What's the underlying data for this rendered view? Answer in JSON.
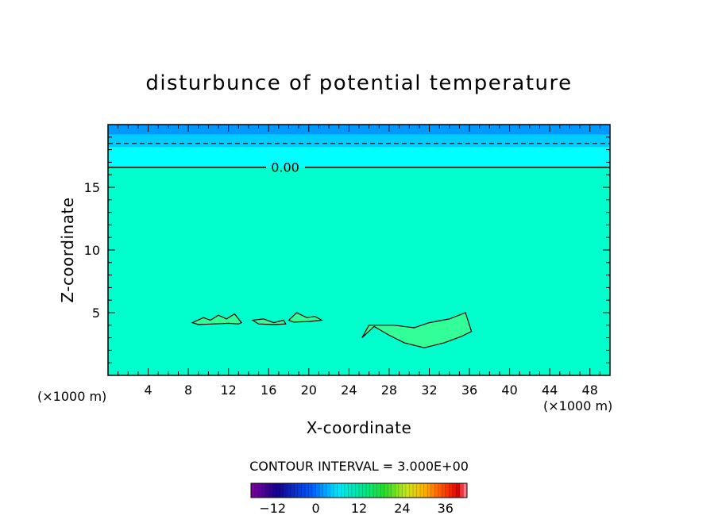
{
  "chart_data": {
    "type": "heatmap",
    "title": "disturbunce of potential temperature",
    "xlabel": "X-coordinate",
    "ylabel": "Z-coordinate",
    "x_unit_left": "(×1000 m)",
    "x_unit_right": "(×1000 m)",
    "xlim": [
      0,
      50
    ],
    "ylim": [
      0,
      20
    ],
    "x_ticks": [
      "4",
      "8",
      "12",
      "16",
      "20",
      "24",
      "28",
      "32",
      "36",
      "40",
      "44",
      "48"
    ],
    "x_tick_values": [
      4,
      8,
      12,
      16,
      20,
      24,
      28,
      32,
      36,
      40,
      44,
      48
    ],
    "y_ticks": [
      "5",
      "10",
      "15"
    ],
    "y_tick_values": [
      5,
      10,
      15
    ],
    "contour_interval_text": "CONTOUR INTERVAL = 3.000E+00",
    "contour_label": "0.00",
    "zero_contour_z": 16.6,
    "dashed_contour_z": 18.5,
    "bands": [
      {
        "z_from": 0,
        "z_to": 16.6,
        "color": "#00ffcc"
      },
      {
        "z_from": 16.6,
        "z_to": 18.2,
        "color": "#00ffff"
      },
      {
        "z_from": 18.2,
        "z_to": 19.2,
        "color": "#00ccff"
      },
      {
        "z_from": 19.2,
        "z_to": 20,
        "color": "#0099ff"
      }
    ],
    "colorbar": {
      "min": -18,
      "max": 42,
      "tick_labels": [
        "-12",
        "0",
        "12",
        "24",
        "36"
      ],
      "tick_values": [
        -12,
        0,
        12,
        24,
        36
      ]
    },
    "positive_regions": [
      {
        "x": [
          8.4,
          9.5,
          10.2,
          11,
          11.8,
          12.6,
          13.3,
          13.0,
          12.0,
          10.5,
          9.0,
          8.4
        ],
        "z": [
          4.2,
          4.6,
          4.4,
          4.8,
          4.5,
          4.9,
          4.2,
          4.1,
          4.15,
          4.1,
          4.05,
          4.2
        ]
      },
      {
        "x": [
          14.4,
          15.5,
          16.5,
          17.5,
          17.7,
          16.5,
          15,
          14.4
        ],
        "z": [
          4.4,
          4.5,
          4.2,
          4.4,
          4.1,
          4.05,
          4.1,
          4.4
        ]
      },
      {
        "x": [
          18.0,
          18.8,
          19.8,
          20.6,
          21.3,
          20.0,
          18.5,
          18.0
        ],
        "z": [
          4.4,
          5.0,
          4.6,
          4.7,
          4.4,
          4.3,
          4.25,
          4.4
        ]
      },
      {
        "x": [
          25.3,
          26.0,
          28.5,
          30.5,
          32.0,
          34.0,
          35.6,
          36.2,
          35.2,
          33.5,
          31.5,
          29.5,
          28.0,
          26.5,
          25.3
        ],
        "z": [
          3.0,
          4.0,
          4.0,
          3.8,
          4.2,
          4.5,
          5.0,
          3.5,
          3.1,
          2.6,
          2.2,
          2.6,
          3.2,
          3.9,
          3.0
        ]
      }
    ]
  }
}
